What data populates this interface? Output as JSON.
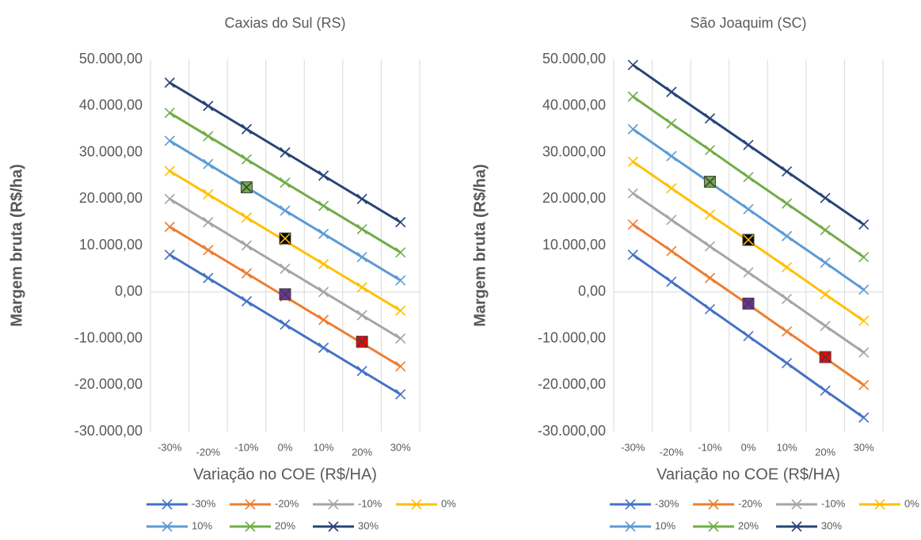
{
  "chart_data": [
    {
      "type": "line",
      "title": "Caxias do Sul (RS)",
      "x_label": "Variação no COE (R$/HA)",
      "y_label": "Margem bruta (R$/ha)",
      "categories": [
        "-30%",
        "-20%",
        "-10%",
        "0%",
        "10%",
        "20%",
        "30%"
      ],
      "ylim": [
        -30000,
        50000
      ],
      "yticks": [
        {
          "value": -30000,
          "label": "-30.000,00"
        },
        {
          "value": -20000,
          "label": "-20.000,00"
        },
        {
          "value": -10000,
          "label": "-10.000,00"
        },
        {
          "value": 0,
          "label": "0,00"
        },
        {
          "value": 10000,
          "label": "10.000,00"
        },
        {
          "value": 20000,
          "label": "20.000,00"
        },
        {
          "value": 30000,
          "label": "30.000,00"
        },
        {
          "value": 40000,
          "label": "40.000,00"
        },
        {
          "value": 50000,
          "label": "50.000,00"
        }
      ],
      "grid": "vertical",
      "series": [
        {
          "name": "-30%",
          "color": "#4472c4",
          "values": [
            8000,
            3000,
            -2000,
            -7000,
            -12000,
            -17000,
            -22000
          ]
        },
        {
          "name": "-20%",
          "color": "#ed7d31",
          "values": [
            14000,
            9000,
            4000,
            -1000,
            -6000,
            -11000,
            -16000
          ]
        },
        {
          "name": "-10%",
          "color": "#a5a5a5",
          "values": [
            20000,
            15000,
            10000,
            5000,
            0,
            -5000,
            -10000
          ]
        },
        {
          "name": "0%",
          "color": "#ffc000",
          "values": [
            26000,
            21000,
            16000,
            11000,
            6000,
            1000,
            -4000
          ]
        },
        {
          "name": "10%",
          "color": "#5b9bd5",
          "values": [
            32500,
            27500,
            22500,
            17500,
            12500,
            7500,
            2500
          ]
        },
        {
          "name": "20%",
          "color": "#70ad47",
          "values": [
            38500,
            33500,
            28500,
            23500,
            18500,
            13500,
            8500
          ]
        },
        {
          "name": "30%",
          "color": "#264478",
          "values": [
            45000,
            40000,
            35000,
            30000,
            25000,
            20000,
            15000
          ]
        },
        {
          "color": "#70ad47",
          "marker": "square",
          "values": [
            null,
            null,
            22500,
            null,
            null,
            null,
            null
          ]
        },
        {
          "color": "#000000",
          "marker": "square",
          "values": [
            null,
            null,
            null,
            11500,
            null,
            null,
            null
          ]
        },
        {
          "color": "#7030a0",
          "marker": "square",
          "values": [
            null,
            null,
            null,
            -500,
            null,
            null,
            null
          ]
        },
        {
          "color": "#ff0000",
          "marker": "square",
          "values": [
            null,
            null,
            null,
            null,
            null,
            -10700,
            null
          ]
        }
      ]
    },
    {
      "type": "line",
      "title": "São Joaquim (SC)",
      "x_label": "Variação no COE (R$/HA)",
      "y_label": "Margem bruta (R$/ha)",
      "categories": [
        "-30%",
        "-20%",
        "-10%",
        "0%",
        "10%",
        "20%",
        "30%"
      ],
      "ylim": [
        -30000,
        50000
      ],
      "yticks": [
        {
          "value": -30000,
          "label": "-30.000,00"
        },
        {
          "value": -20000,
          "label": "-20.000,00"
        },
        {
          "value": -10000,
          "label": "-10.000,00"
        },
        {
          "value": 0,
          "label": "0,00"
        },
        {
          "value": 10000,
          "label": "10.000,00"
        },
        {
          "value": 20000,
          "label": "20.000,00"
        },
        {
          "value": 30000,
          "label": "30.000,00"
        },
        {
          "value": 40000,
          "label": "40.000,00"
        },
        {
          "value": 50000,
          "label": "50.000,00"
        }
      ],
      "grid": "vertical",
      "series": [
        {
          "name": "-30%",
          "color": "#4472c4",
          "values": [
            8000,
            2200,
            -3700,
            -9500,
            -15300,
            -21200,
            -27000
          ]
        },
        {
          "name": "-20%",
          "color": "#ed7d31",
          "values": [
            14500,
            8800,
            3000,
            -2700,
            -8500,
            -14200,
            -20000
          ]
        },
        {
          "name": "-10%",
          "color": "#a5a5a5",
          "values": [
            21200,
            15500,
            9800,
            4200,
            -1500,
            -7300,
            -13000
          ]
        },
        {
          "name": "0%",
          "color": "#ffc000",
          "values": [
            28000,
            22300,
            16600,
            11000,
            5300,
            -500,
            -6200
          ]
        },
        {
          "name": "10%",
          "color": "#5b9bd5",
          "values": [
            35000,
            29200,
            23500,
            17800,
            12000,
            6300,
            500
          ]
        },
        {
          "name": "20%",
          "color": "#70ad47",
          "values": [
            42000,
            36200,
            30500,
            24700,
            19000,
            13300,
            7500
          ]
        },
        {
          "name": "30%",
          "color": "#264478",
          "values": [
            48800,
            43000,
            37300,
            31600,
            25900,
            20200,
            14500
          ]
        },
        {
          "color": "#70ad47",
          "marker": "square",
          "values": [
            null,
            null,
            23700,
            null,
            null,
            null,
            null
          ]
        },
        {
          "color": "#000000",
          "marker": "square",
          "values": [
            null,
            null,
            null,
            11200,
            null,
            null,
            null
          ]
        },
        {
          "color": "#7030a0",
          "marker": "square",
          "values": [
            null,
            null,
            null,
            -2500,
            null,
            null,
            null
          ]
        },
        {
          "color": "#ff0000",
          "marker": "square",
          "values": [
            null,
            null,
            null,
            null,
            null,
            -14000,
            null
          ]
        }
      ]
    }
  ]
}
